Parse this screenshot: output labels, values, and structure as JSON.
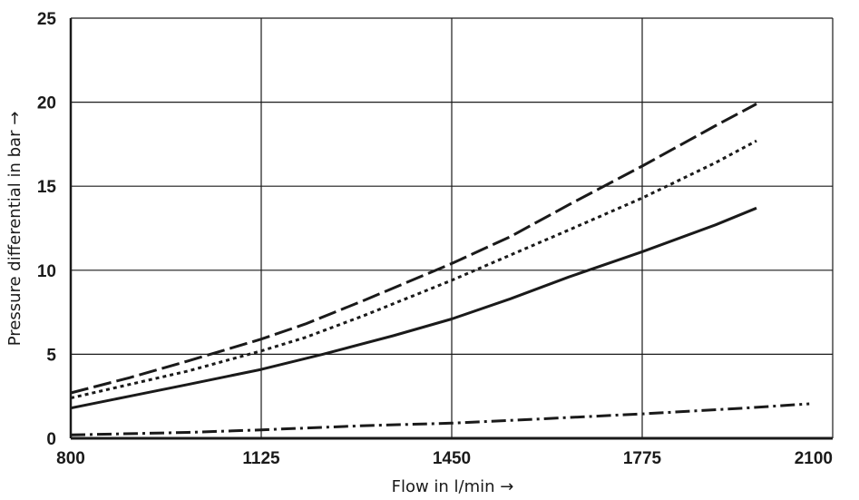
{
  "chart_data": {
    "type": "line",
    "title": "",
    "xlabel": "Flow in l/min →",
    "ylabel": "Pressure differential in bar →",
    "xlim": [
      800,
      2100
    ],
    "ylim": [
      0,
      25
    ],
    "x_ticks": [
      800,
      1125,
      1450,
      1775,
      2100
    ],
    "y_ticks": [
      0,
      5,
      10,
      15,
      20,
      25
    ],
    "x_tick_labels": [
      "800",
      "1125",
      "1450",
      "1775",
      "2100"
    ],
    "y_tick_labels": [
      "0",
      "5",
      "10",
      "15",
      "20",
      "25"
    ],
    "grid": true,
    "legend": "none",
    "series": [
      {
        "style": "long-dash",
        "color": "#1a1a1a",
        "x": [
          800,
          900,
          1000,
          1125,
          1200,
          1300,
          1450,
          1550,
          1650,
          1775,
          1900,
          1970
        ],
        "y": [
          2.7,
          3.6,
          4.6,
          5.9,
          6.8,
          8.2,
          10.4,
          12.0,
          13.9,
          16.2,
          18.6,
          19.9
        ]
      },
      {
        "style": "dotted",
        "color": "#1a1a1a",
        "x": [
          800,
          900,
          1000,
          1125,
          1200,
          1300,
          1450,
          1550,
          1650,
          1775,
          1900,
          1970
        ],
        "y": [
          2.4,
          3.2,
          4.0,
          5.2,
          6.0,
          7.3,
          9.4,
          10.9,
          12.4,
          14.3,
          16.4,
          17.7
        ]
      },
      {
        "style": "solid",
        "color": "#1a1a1a",
        "x": [
          800,
          900,
          1000,
          1125,
          1230,
          1350,
          1450,
          1550,
          1650,
          1775,
          1900,
          1970
        ],
        "y": [
          1.8,
          2.5,
          3.2,
          4.1,
          5.0,
          6.1,
          7.1,
          8.3,
          9.6,
          11.1,
          12.7,
          13.7
        ]
      },
      {
        "style": "dash-dot",
        "color": "#1a1a1a",
        "x": [
          800,
          1000,
          1125,
          1300,
          1450,
          1600,
          1775,
          1950,
          2060
        ],
        "y": [
          0.2,
          0.35,
          0.5,
          0.75,
          0.9,
          1.15,
          1.45,
          1.8,
          2.05
        ]
      }
    ]
  }
}
